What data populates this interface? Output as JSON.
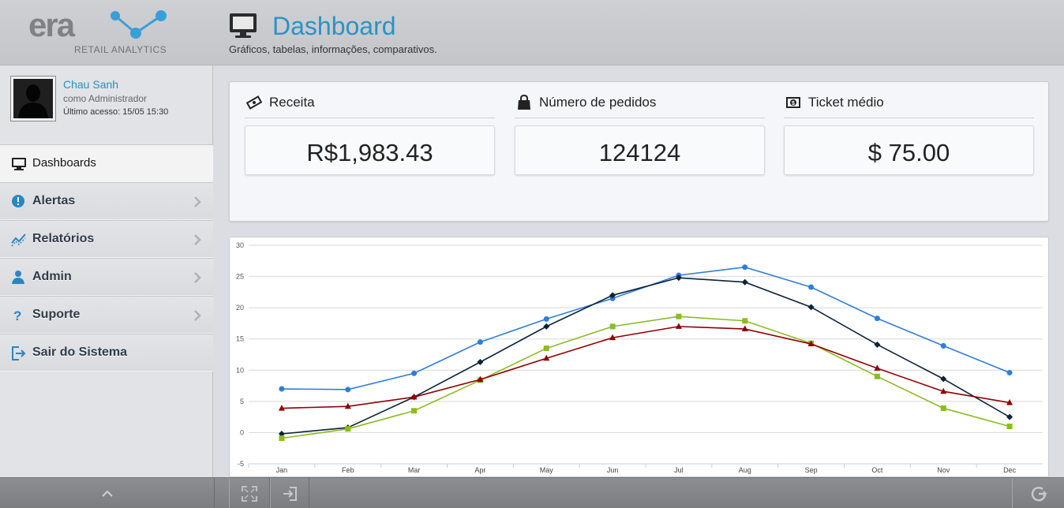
{
  "brand": {
    "logo_text": "era",
    "logo_subtitle": "RETAIL ANALYTICS",
    "logo_color": "#7f8185",
    "net_color": "#3a9fd6"
  },
  "header": {
    "title": "Dashboard",
    "subtitle": "Gráficos, tabelas, informações, comparativos.",
    "title_color": "#2a93c4"
  },
  "profile": {
    "name": "Chau Sanh",
    "role": "como Administrador",
    "last_access": "Último acesso: 15/05 15:30"
  },
  "menu": [
    {
      "label": "Dashboards",
      "icon": "monitor-icon",
      "active": true
    },
    {
      "label": "Alertas",
      "icon": "alert-icon"
    },
    {
      "label": "Relatórios",
      "icon": "trend-icon"
    },
    {
      "label": "Admin",
      "icon": "user-icon"
    },
    {
      "label": "Suporte",
      "icon": "question-icon"
    },
    {
      "label": "Sair do Sistema",
      "icon": "logout-icon"
    }
  ],
  "kpis": [
    {
      "label": "Receita",
      "value": "R$1,983.43",
      "icon": "money-icon"
    },
    {
      "label": "Número de pedidos",
      "value": "124124",
      "icon": "bag-icon"
    },
    {
      "label": "Ticket médio",
      "value": "$ 75.00",
      "icon": "banknote-icon"
    }
  ],
  "chart_data": {
    "type": "line",
    "categories": [
      "Jan",
      "Feb",
      "Mar",
      "Apr",
      "May",
      "Jun",
      "Jul",
      "Aug",
      "Sep",
      "Oct",
      "Nov",
      "Dec"
    ],
    "ylim": [
      -5,
      30
    ],
    "yticks": [
      -5,
      0,
      5,
      10,
      15,
      20,
      25,
      30
    ],
    "grid": true,
    "series": [
      {
        "values": [
          7.0,
          6.9,
          9.5,
          14.5,
          18.2,
          21.5,
          25.2,
          26.5,
          23.3,
          18.3,
          13.9,
          9.6
        ],
        "color": "#2f7ed8",
        "marker": "circle"
      },
      {
        "values": [
          -0.2,
          0.8,
          5.7,
          11.3,
          17.0,
          22.0,
          24.8,
          24.1,
          20.1,
          14.1,
          8.6,
          2.5
        ],
        "color": "#0d233a",
        "marker": "diamond"
      },
      {
        "values": [
          -0.9,
          0.6,
          3.5,
          8.4,
          13.5,
          17.0,
          18.6,
          17.9,
          14.3,
          9.0,
          3.9,
          1.0
        ],
        "color": "#8bbc21",
        "marker": "square"
      },
      {
        "values": [
          3.9,
          4.2,
          5.7,
          8.5,
          11.9,
          15.2,
          17.0,
          16.6,
          14.2,
          10.3,
          6.6,
          4.8
        ],
        "color": "#910000",
        "marker": "triangle"
      }
    ]
  }
}
